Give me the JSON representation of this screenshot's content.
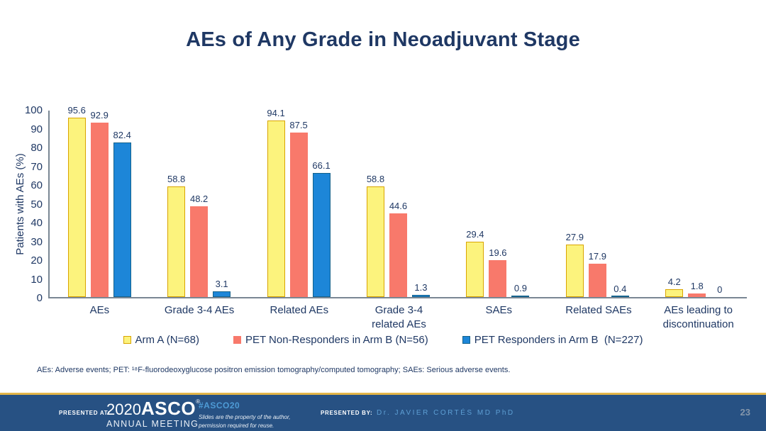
{
  "slide": {
    "title": "AEs of Any Grade in Neoadjuvant Stage",
    "footnote": "AEs: Adverse events; PET: ¹⁸F-fluorodeoxyglucose positron emission tomography/computed tomography; SAEs: Serious adverse events."
  },
  "chart_data": {
    "type": "bar",
    "title": "AEs of Any Grade in Neoadjuvant Stage",
    "xlabel": "",
    "ylabel": "Patients with AEs (%)",
    "ylim": [
      0,
      100
    ],
    "ytick_step": 10,
    "grid": false,
    "legend_position": "bottom",
    "categories": [
      "AEs",
      "Grade 3-4 AEs",
      "Related AEs",
      "Grade 3-4\nrelated AEs",
      "SAEs",
      "Related SAEs",
      "AEs leading to\ndiscontinuation"
    ],
    "series": [
      {
        "name": "Arm A (N=68)",
        "fill": "#FCF37D",
        "border": "#D9A400",
        "values": [
          95.6,
          58.8,
          94.1,
          58.8,
          29.4,
          27.9,
          4.2
        ]
      },
      {
        "name": "PET Non-Responders in Arm B (N=56)",
        "fill": "#F8796B",
        "border": "#F8796B",
        "values": [
          92.9,
          48.2,
          87.5,
          44.6,
          19.6,
          17.9,
          1.8
        ]
      },
      {
        "name": "PET Responders in Arm B  (N=227)",
        "fill": "#1D86D8",
        "border": "#14628C",
        "values": [
          82.4,
          3.1,
          66.1,
          1.3,
          0.9,
          0.4,
          0
        ]
      }
    ]
  },
  "colors": {
    "title_text": "#1F3864",
    "axis_line": "#7A8794",
    "footer_background": "#275183",
    "footer_gold_line": "#E3B548",
    "hashtag_blue": "#4E9BD6"
  },
  "footer": {
    "presented_at_label": "PRESENTED AT:",
    "logo_year": "2020",
    "logo_name": "ASCO",
    "logo_reg": "®",
    "logo_sub": "ANNUAL MEETING",
    "hashtag": "#ASCO20",
    "disclaimer_line1": "Slides are the property of the author,",
    "disclaimer_line2": "permission required for reuse.",
    "presented_by_label": "PRESENTED BY:",
    "presenter": "Dr. JAVIER CORTÉS MD PhD",
    "page_number": "23"
  }
}
